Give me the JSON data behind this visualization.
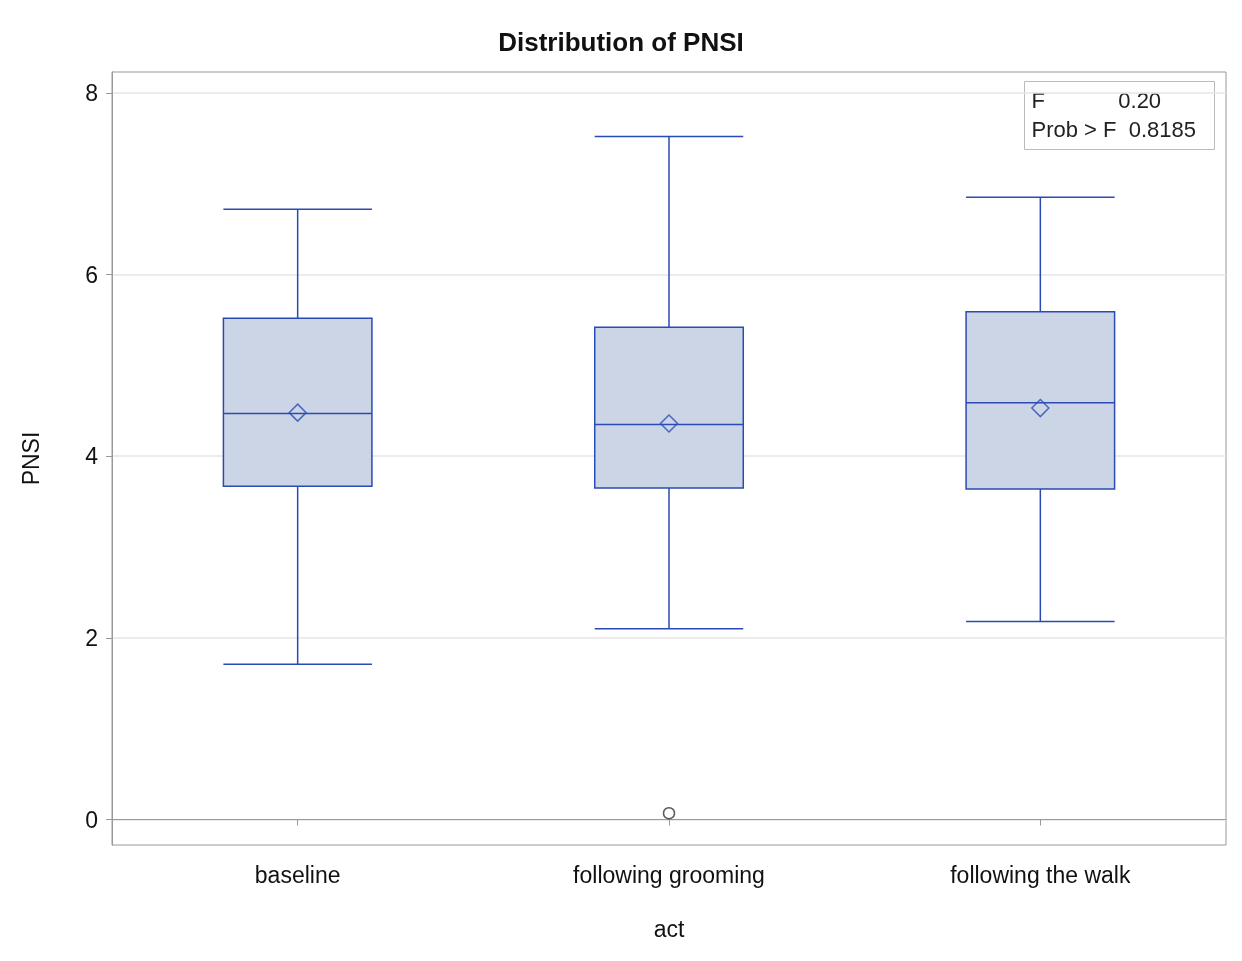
{
  "chart_data": {
    "type": "box",
    "title": "Distribution of PNSI",
    "xlabel": "act",
    "ylabel": "PNSI",
    "categories": [
      "baseline",
      "following grooming",
      "following the walk"
    ],
    "series": [
      {
        "color": "#2a4bb5",
        "boxes": [
          {
            "low": 1.71,
            "q1": 3.67,
            "median": 4.47,
            "q3": 5.52,
            "high": 6.72,
            "mean": 4.48
          },
          {
            "low": 2.1,
            "q1": 3.65,
            "median": 4.35,
            "q3": 5.42,
            "high": 7.52,
            "mean": 4.36,
            "outliers": [
              0.07
            ]
          },
          {
            "low": 2.18,
            "q1": 3.64,
            "median": 4.59,
            "q3": 5.59,
            "high": 6.85,
            "mean": 4.53
          }
        ]
      }
    ],
    "ylim": [
      -0.28,
      8.23
    ],
    "yticks": [
      0,
      2,
      4,
      6,
      8
    ],
    "grid": "y",
    "annotations": [
      "F            0.20",
      "Prob > F  0.8185"
    ]
  }
}
